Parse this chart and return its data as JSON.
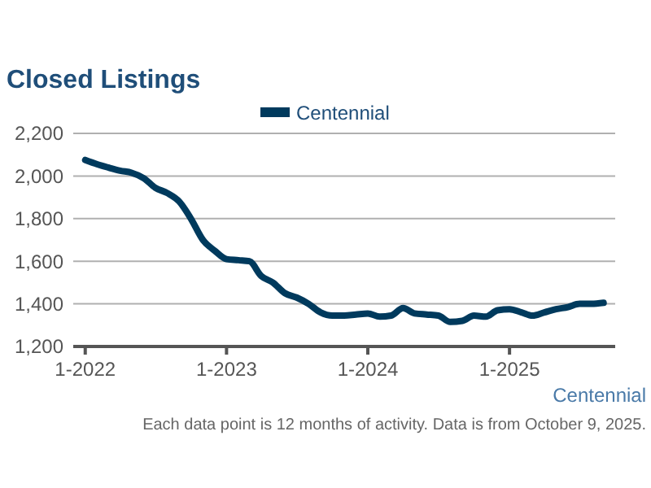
{
  "chart_data": {
    "type": "line",
    "title": "Closed Listings",
    "x": [
      "2022-01",
      "2022-02",
      "2022-03",
      "2022-04",
      "2022-05",
      "2022-06",
      "2022-07",
      "2022-08",
      "2022-09",
      "2022-10",
      "2022-11",
      "2022-12",
      "2023-01",
      "2023-02",
      "2023-03",
      "2023-04",
      "2023-05",
      "2023-06",
      "2023-07",
      "2023-08",
      "2023-09",
      "2023-10",
      "2023-11",
      "2023-12",
      "2024-01",
      "2024-02",
      "2024-03",
      "2024-04",
      "2024-05",
      "2024-06",
      "2024-07",
      "2024-08",
      "2024-09",
      "2024-10",
      "2024-11",
      "2024-12",
      "2025-01",
      "2025-02",
      "2025-03",
      "2025-04",
      "2025-05",
      "2025-06",
      "2025-07",
      "2025-08",
      "2025-09"
    ],
    "series": [
      {
        "name": "Centennial",
        "color": "#003a5d",
        "values": [
          2075,
          2055,
          2040,
          2025,
          2015,
          1990,
          1945,
          1920,
          1880,
          1800,
          1700,
          1650,
          1610,
          1605,
          1600,
          1530,
          1500,
          1450,
          1430,
          1400,
          1360,
          1345,
          1345,
          1350,
          1355,
          1340,
          1345,
          1380,
          1355,
          1350,
          1345,
          1315,
          1320,
          1345,
          1340,
          1370,
          1375,
          1360,
          1345,
          1360,
          1375,
          1385,
          1400,
          1400,
          1405
        ]
      }
    ],
    "xlim": [
      "2021-12",
      "2025-10"
    ],
    "xticks": [
      {
        "value": "2022-01",
        "label": "1-2022"
      },
      {
        "value": "2023-01",
        "label": "1-2023"
      },
      {
        "value": "2024-01",
        "label": "1-2024"
      },
      {
        "value": "2025-01",
        "label": "1-2025"
      }
    ],
    "ylim": [
      1200,
      2200
    ],
    "yticks": [
      {
        "value": 1200,
        "label": "1,200"
      },
      {
        "value": 1400,
        "label": "1,400"
      },
      {
        "value": 1600,
        "label": "1,600"
      },
      {
        "value": 1800,
        "label": "1,800"
      },
      {
        "value": 2000,
        "label": "2,000"
      },
      {
        "value": 2200,
        "label": "2,200"
      }
    ],
    "grid": "y",
    "legend": "top",
    "marker": "none",
    "line_style": "solid",
    "annotations": [
      "Centennial",
      "Each data point is 12 months of activity. Data is from October 9, 2025."
    ]
  }
}
